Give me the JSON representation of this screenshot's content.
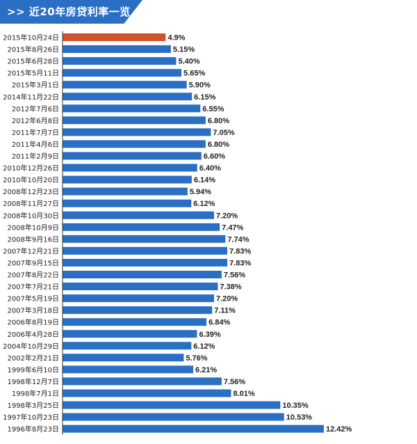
{
  "header": {
    "title": ">> 近20年房贷利率一览"
  },
  "colors": {
    "bar": "#2a6fc4",
    "highlight_bar": "#d2502b",
    "highlight_text": "#d2502b",
    "axis": "#333333",
    "banner": "#2a6fc4"
  },
  "chart_data": {
    "type": "bar",
    "orientation": "horizontal",
    "title": "近20年房贷利率一览",
    "xlabel": "",
    "ylabel": "",
    "xlim": [
      0,
      12.42
    ],
    "highlight_index": 0,
    "categories": [
      "2015年10月24日",
      "2015年8月26日",
      "2015年6月28日",
      "2015年5月11日",
      "2015年3月1日",
      "2014年11月22日",
      "2012年7月6日",
      "2012年6月8日",
      "2011年7月7日",
      "2011年4月6日",
      "2011年2月9日",
      "2010年12月26日",
      "2010年10月20日",
      "2008年12月23日",
      "2008年11月27日",
      "2008年10月30日",
      "2008年10月9日",
      "2008年9月16日",
      "2007年12月21日",
      "2007年9月15日",
      "2007年8月22日",
      "2007年7月21日",
      "2007年5月19日",
      "2007年3月18日",
      "2006年8月19日",
      "2006年4月28日",
      "2004年10月29日",
      "2002年2月21日",
      "1999年6月10日",
      "1998年12月7日",
      "1998年7月1日",
      "1998年3月25日",
      "1997年10月23日",
      "1996年8月23日"
    ],
    "values": [
      4.9,
      5.15,
      5.4,
      5.65,
      5.9,
      6.15,
      6.55,
      6.8,
      7.05,
      6.8,
      6.6,
      6.4,
      6.14,
      5.94,
      6.12,
      7.2,
      7.47,
      7.74,
      7.83,
      7.83,
      7.56,
      7.38,
      7.2,
      7.11,
      6.84,
      6.39,
      6.12,
      5.76,
      6.21,
      7.56,
      8.01,
      10.35,
      10.53,
      12.42
    ],
    "value_labels": [
      "4.9%",
      "5.15%",
      "5.40%",
      "5.65%",
      "5.90%",
      "6.15%",
      "6.55%",
      "6.80%",
      "7.05%",
      "6.80%",
      "6.60%",
      "6.40%",
      "6.14%",
      "5.94%",
      "6.12%",
      "7.20%",
      "7.47%",
      "7.74%",
      "7.83%",
      "7.83%",
      "7.56%",
      "7.38%",
      "7.20%",
      "7.11%",
      "6.84%",
      "6.39%",
      "6.12%",
      "5.76%",
      "6.21%",
      "7.56%",
      "8.01%",
      "10.35%",
      "10.53%",
      "12.42%"
    ]
  }
}
